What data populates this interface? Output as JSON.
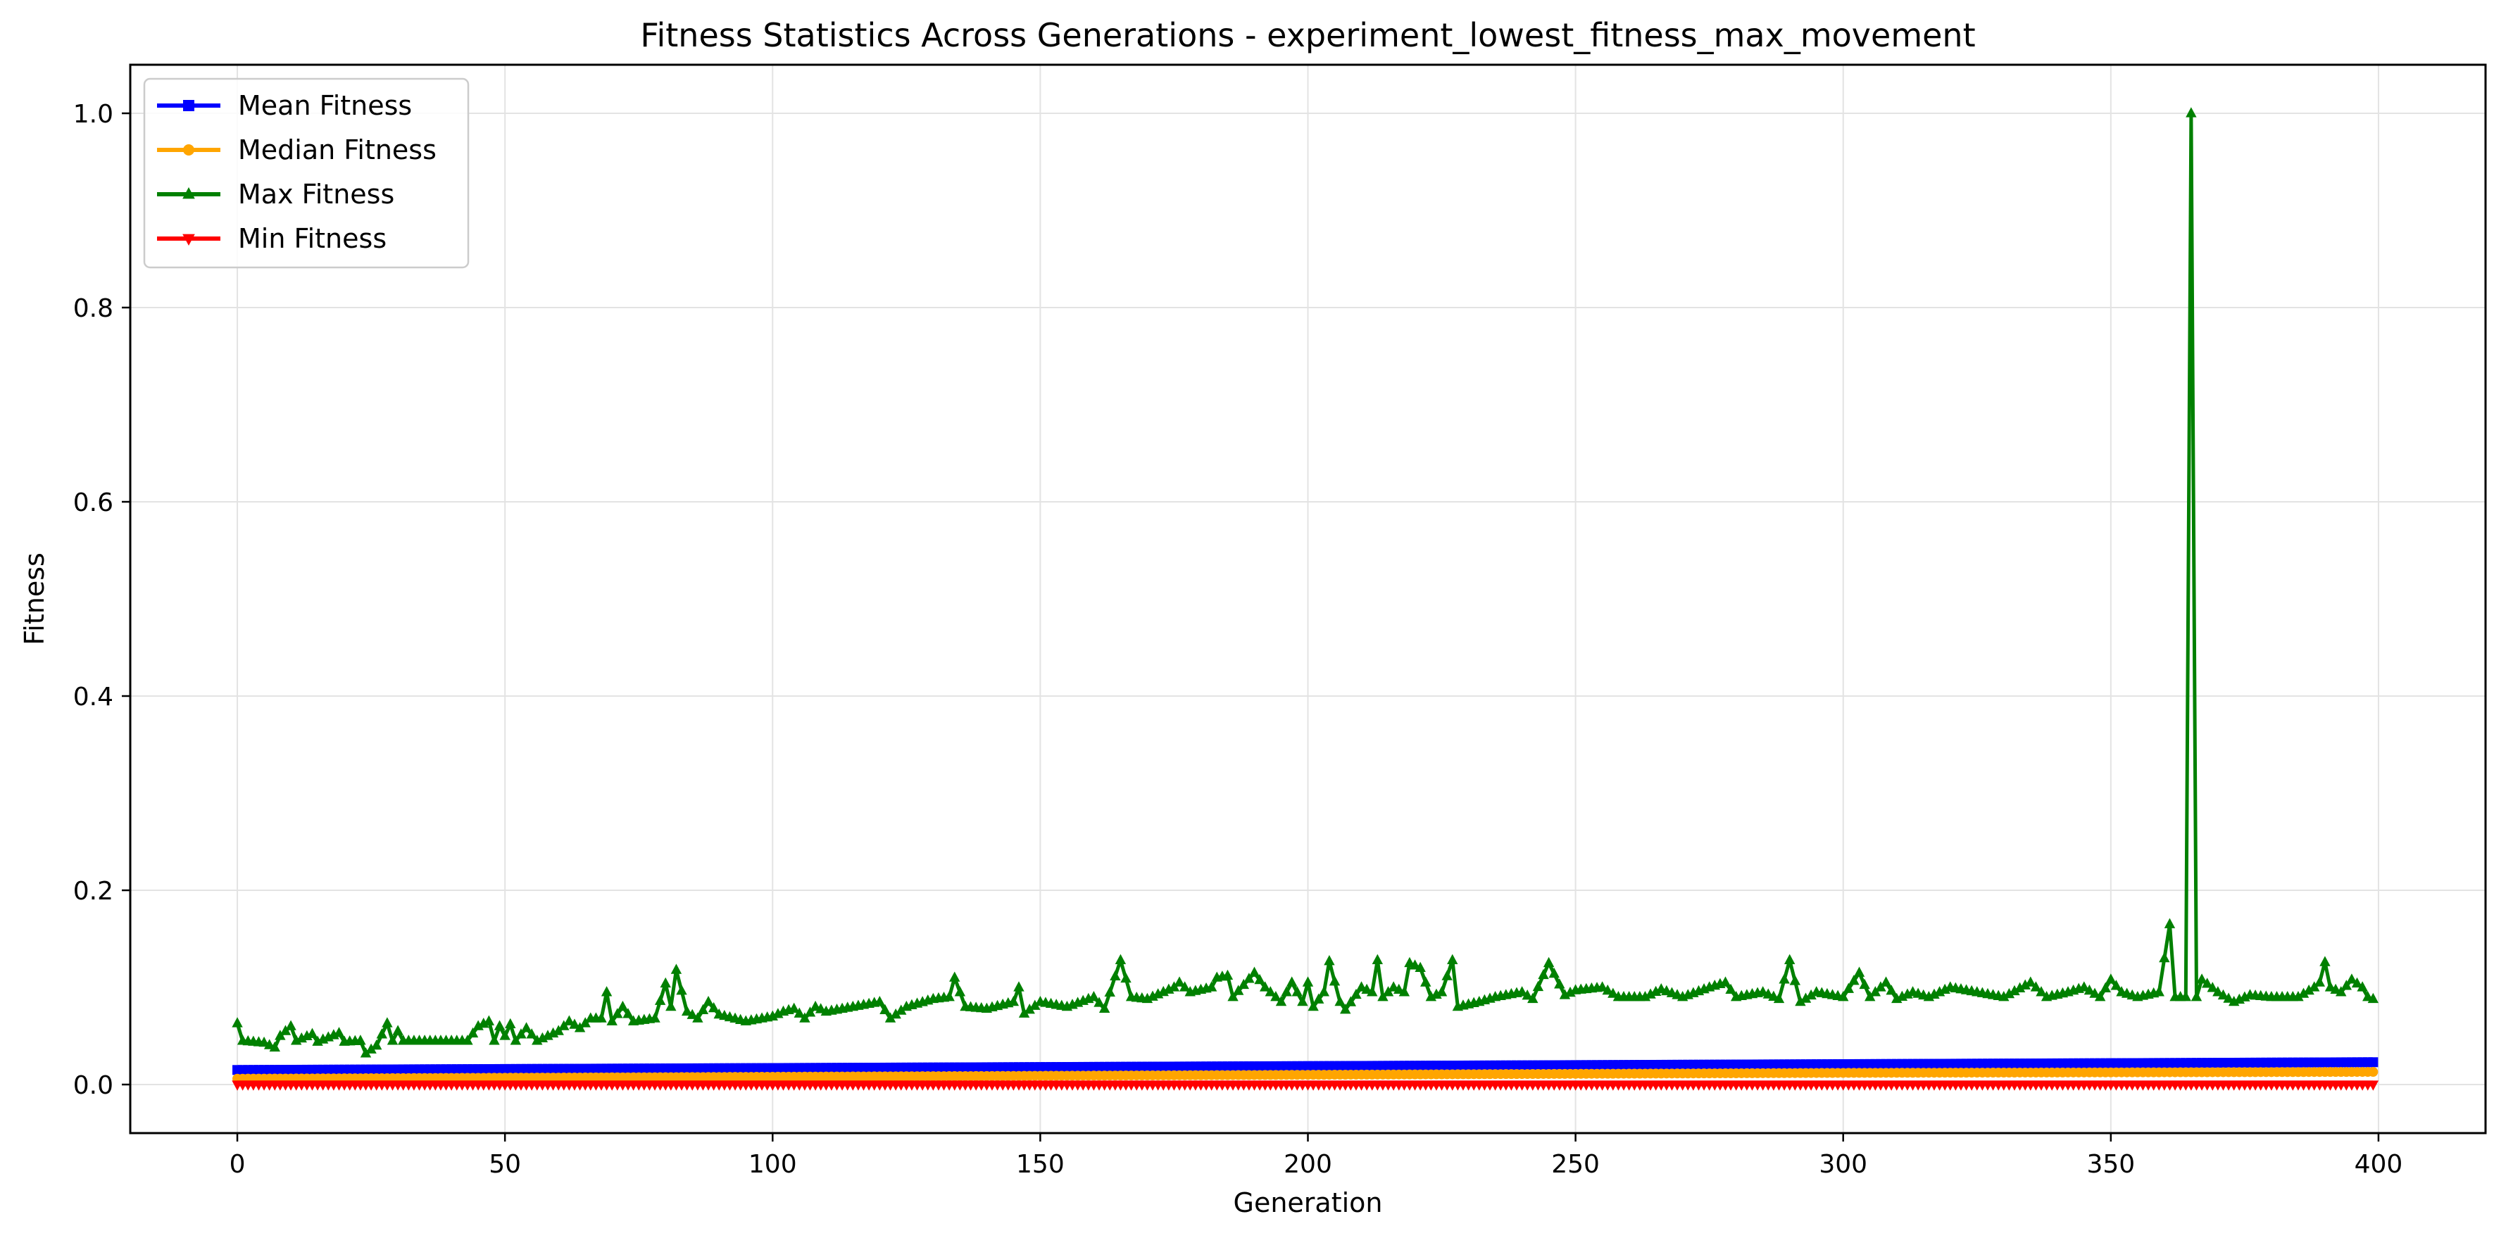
{
  "chart_data": {
    "type": "line",
    "title": "Fitness Statistics Across Generations - experiment_lowest_fitness_max_movement",
    "xlabel": "Generation",
    "ylabel": "Fitness",
    "xlim": [
      -20,
      420
    ],
    "ylim": [
      -0.05,
      1.05
    ],
    "xticks": [
      0,
      50,
      100,
      150,
      200,
      250,
      300,
      350,
      400
    ],
    "yticks": [
      0.0,
      0.2,
      0.4,
      0.6,
      0.8,
      1.0
    ],
    "grid": true,
    "legend_position": "top-left",
    "x": {
      "start": 0,
      "end": 399,
      "step": 1
    },
    "series": [
      {
        "name": "Mean Fitness",
        "color": "#0000ff",
        "marker": "square",
        "trend": [
          [
            0,
            0.015
          ],
          [
            50,
            0.016
          ],
          [
            100,
            0.017
          ],
          [
            150,
            0.018
          ],
          [
            200,
            0.019
          ],
          [
            250,
            0.02
          ],
          [
            300,
            0.021
          ],
          [
            350,
            0.022
          ],
          [
            399,
            0.023
          ]
        ]
      },
      {
        "name": "Median Fitness",
        "color": "#ffa500",
        "marker": "circle",
        "trend": [
          [
            0,
            0.006
          ],
          [
            100,
            0.008
          ],
          [
            200,
            0.01
          ],
          [
            300,
            0.012
          ],
          [
            399,
            0.013
          ]
        ]
      },
      {
        "name": "Max Fitness",
        "color": "#008000",
        "marker": "triangle-up",
        "keypoints": [
          [
            0,
            0.063
          ],
          [
            1,
            0.045
          ],
          [
            5,
            0.043
          ],
          [
            7,
            0.038
          ],
          [
            8,
            0.05
          ],
          [
            10,
            0.06
          ],
          [
            11,
            0.045
          ],
          [
            14,
            0.052
          ],
          [
            15,
            0.044
          ],
          [
            19,
            0.053
          ],
          [
            20,
            0.044
          ],
          [
            23,
            0.045
          ],
          [
            24,
            0.032
          ],
          [
            26,
            0.04
          ],
          [
            28,
            0.063
          ],
          [
            29,
            0.045
          ],
          [
            30,
            0.055
          ],
          [
            31,
            0.045
          ],
          [
            43,
            0.045
          ],
          [
            45,
            0.06
          ],
          [
            47,
            0.065
          ],
          [
            48,
            0.045
          ],
          [
            49,
            0.06
          ],
          [
            50,
            0.05
          ],
          [
            51,
            0.062
          ],
          [
            52,
            0.045
          ],
          [
            54,
            0.058
          ],
          [
            56,
            0.045
          ],
          [
            58,
            0.05
          ],
          [
            60,
            0.055
          ],
          [
            62,
            0.065
          ],
          [
            64,
            0.058
          ],
          [
            66,
            0.068
          ],
          [
            68,
            0.068
          ],
          [
            69,
            0.095
          ],
          [
            70,
            0.065
          ],
          [
            72,
            0.08
          ],
          [
            74,
            0.065
          ],
          [
            78,
            0.068
          ],
          [
            80,
            0.104
          ],
          [
            81,
            0.08
          ],
          [
            82,
            0.118
          ],
          [
            84,
            0.075
          ],
          [
            86,
            0.068
          ],
          [
            88,
            0.085
          ],
          [
            90,
            0.072
          ],
          [
            95,
            0.065
          ],
          [
            100,
            0.07
          ],
          [
            102,
            0.075
          ],
          [
            104,
            0.078
          ],
          [
            106,
            0.068
          ],
          [
            108,
            0.08
          ],
          [
            110,
            0.075
          ],
          [
            115,
            0.08
          ],
          [
            120,
            0.085
          ],
          [
            122,
            0.068
          ],
          [
            125,
            0.08
          ],
          [
            130,
            0.088
          ],
          [
            133,
            0.09
          ],
          [
            134,
            0.11
          ],
          [
            136,
            0.08
          ],
          [
            140,
            0.078
          ],
          [
            145,
            0.085
          ],
          [
            146,
            0.1
          ],
          [
            147,
            0.073
          ],
          [
            150,
            0.085
          ],
          [
            155,
            0.08
          ],
          [
            160,
            0.09
          ],
          [
            162,
            0.078
          ],
          [
            165,
            0.128
          ],
          [
            167,
            0.09
          ],
          [
            170,
            0.088
          ],
          [
            175,
            0.1
          ],
          [
            176,
            0.105
          ],
          [
            178,
            0.095
          ],
          [
            182,
            0.1
          ],
          [
            183,
            0.11
          ],
          [
            185,
            0.112
          ],
          [
            186,
            0.09
          ],
          [
            190,
            0.115
          ],
          [
            192,
            0.1
          ],
          [
            195,
            0.085
          ],
          [
            197,
            0.105
          ],
          [
            199,
            0.085
          ],
          [
            200,
            0.105
          ],
          [
            201,
            0.08
          ],
          [
            203,
            0.095
          ],
          [
            204,
            0.127
          ],
          [
            206,
            0.085
          ],
          [
            207,
            0.077
          ],
          [
            210,
            0.1
          ],
          [
            212,
            0.095
          ],
          [
            213,
            0.128
          ],
          [
            214,
            0.09
          ],
          [
            216,
            0.1
          ],
          [
            218,
            0.095
          ],
          [
            219,
            0.125
          ],
          [
            221,
            0.12
          ],
          [
            223,
            0.09
          ],
          [
            225,
            0.095
          ],
          [
            227,
            0.128
          ],
          [
            228,
            0.08
          ],
          [
            232,
            0.085
          ],
          [
            235,
            0.09
          ],
          [
            240,
            0.095
          ],
          [
            242,
            0.088
          ],
          [
            245,
            0.125
          ],
          [
            248,
            0.092
          ],
          [
            250,
            0.097
          ],
          [
            255,
            0.1
          ],
          [
            258,
            0.09
          ],
          [
            263,
            0.09
          ],
          [
            266,
            0.098
          ],
          [
            270,
            0.09
          ],
          [
            275,
            0.1
          ],
          [
            278,
            0.105
          ],
          [
            280,
            0.09
          ],
          [
            285,
            0.095
          ],
          [
            288,
            0.088
          ],
          [
            290,
            0.128
          ],
          [
            292,
            0.085
          ],
          [
            295,
            0.095
          ],
          [
            300,
            0.09
          ],
          [
            303,
            0.115
          ],
          [
            305,
            0.09
          ],
          [
            308,
            0.105
          ],
          [
            310,
            0.088
          ],
          [
            313,
            0.095
          ],
          [
            316,
            0.09
          ],
          [
            320,
            0.1
          ],
          [
            325,
            0.095
          ],
          [
            330,
            0.09
          ],
          [
            335,
            0.105
          ],
          [
            338,
            0.09
          ],
          [
            342,
            0.095
          ],
          [
            345,
            0.1
          ],
          [
            348,
            0.09
          ],
          [
            350,
            0.108
          ],
          [
            352,
            0.095
          ],
          [
            355,
            0.09
          ],
          [
            359,
            0.095
          ],
          [
            361,
            0.165
          ],
          [
            362,
            0.09
          ],
          [
            364,
            0.09
          ],
          [
            365,
            1.0
          ],
          [
            366,
            0.09
          ],
          [
            367,
            0.108
          ],
          [
            370,
            0.095
          ],
          [
            373,
            0.085
          ],
          [
            376,
            0.092
          ],
          [
            380,
            0.09
          ],
          [
            385,
            0.09
          ],
          [
            388,
            0.1
          ],
          [
            389,
            0.105
          ],
          [
            390,
            0.126
          ],
          [
            391,
            0.1
          ],
          [
            393,
            0.095
          ],
          [
            395,
            0.108
          ],
          [
            397,
            0.1
          ],
          [
            398,
            0.09
          ],
          [
            399,
            0.088
          ]
        ]
      },
      {
        "name": "Min Fitness",
        "color": "#ff0000",
        "marker": "triangle-down",
        "trend": [
          [
            0,
            0.0
          ],
          [
            399,
            0.0
          ]
        ]
      }
    ]
  }
}
